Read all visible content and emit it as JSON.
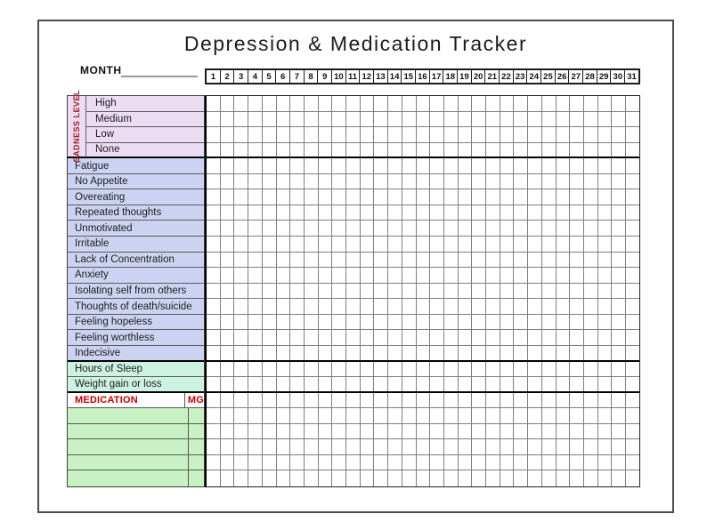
{
  "page": {
    "title": "Depression & Medication Tracker",
    "month_label": "MONTH"
  },
  "days": [
    "1",
    "2",
    "3",
    "4",
    "5",
    "6",
    "7",
    "8",
    "9",
    "10",
    "11",
    "12",
    "13",
    "14",
    "15",
    "16",
    "17",
    "18",
    "19",
    "20",
    "21",
    "22",
    "23",
    "24",
    "25",
    "26",
    "27",
    "28",
    "29",
    "30",
    "31"
  ],
  "sadness": {
    "side_label": "SADNESS LEVEL",
    "levels": [
      "High",
      "Medium",
      "Low",
      "None"
    ]
  },
  "symptoms": [
    "Fatigue",
    "No Appetite",
    "Overeating",
    "Repeated thoughts",
    "Unmotivated",
    "Irritable",
    "Lack of Concentration",
    "Anxiety",
    "Isolating self from others",
    "Thoughts of death/suicide",
    "Feeling hopeless",
    "Feeling worthless",
    "Indecisive"
  ],
  "sleep_rows": [
    "Hours of Sleep",
    "Weight gain or loss"
  ],
  "medication": {
    "header": "MEDICATION",
    "mg_header": "MG",
    "empty_row_count": 5
  },
  "grid": {
    "columns": 31,
    "total_rows": 25,
    "thick_separator_after_rows": [
      3,
      16,
      18
    ]
  },
  "colors": {
    "sadness_bg": "#ebdcf3",
    "symptom_bg": "#ccd3f2",
    "sleep_bg": "#cdf2e3",
    "med_bg": "#c8f1c4",
    "red_accent": "#c00000",
    "maroon_accent": "#9e1b1b"
  }
}
